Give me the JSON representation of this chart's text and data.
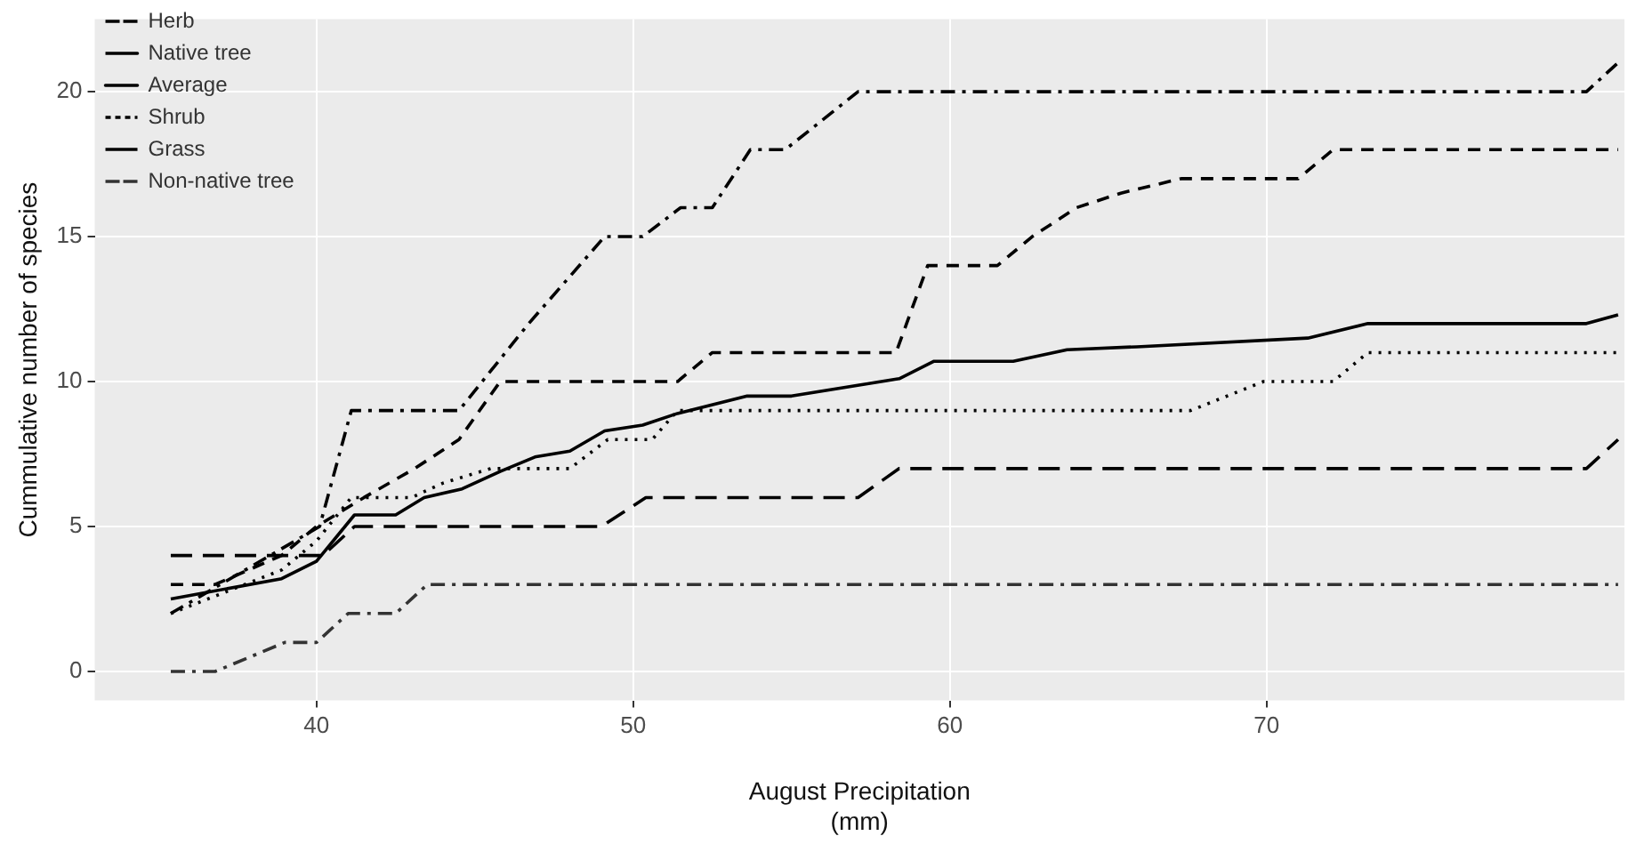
{
  "chart_data": {
    "type": "line",
    "xlabel": "August Precipitation\n(mm)",
    "ylabel": "Cummulative number of species",
    "xlim": [
      33,
      81.3
    ],
    "xticks": [
      40,
      50,
      60,
      70
    ],
    "ylim": [
      -1,
      22.5
    ],
    "yticks": [
      0,
      5,
      10,
      15,
      20
    ],
    "grid": true,
    "legend": "top left",
    "marker": "none",
    "series": [
      {
        "name": "Herb",
        "color": "#000000",
        "line_style": "dashdot",
        "x": [
          35.4,
          40.1,
          41.1,
          44.5,
          46.7,
          49.1,
          50.3,
          51.5,
          52.5,
          53.7,
          54.8,
          57.1,
          80.1,
          81.1
        ],
        "values": [
          2,
          5,
          9,
          9,
          12,
          15,
          15,
          16,
          16,
          18,
          18,
          20,
          20,
          21
        ]
      },
      {
        "name": "Native tree",
        "color": "#000000",
        "line_style": "dashed",
        "x": [
          35.4,
          36.8,
          38.9,
          40,
          41.5,
          43.1,
          44.5,
          45.8,
          51.4,
          52.5,
          58.3,
          59.3,
          61.5,
          62.6,
          64,
          65.4,
          67.3,
          71,
          72.1,
          81.1
        ],
        "values": [
          3,
          3,
          4,
          5,
          6,
          7,
          8,
          10,
          10,
          11,
          11,
          14,
          14,
          15,
          16,
          16.5,
          17,
          17,
          18,
          18
        ]
      },
      {
        "name": "Average",
        "color": "#000000",
        "line_style": "solid",
        "x": [
          35.4,
          38.9,
          40,
          41.2,
          42.5,
          43.4,
          44.6,
          45.8,
          46.9,
          48,
          49.1,
          50.3,
          51.4,
          53.6,
          55,
          58.4,
          59.5,
          62,
          63.7,
          65.9,
          71.3,
          73.2,
          80.1,
          81.1
        ],
        "values": [
          2.5,
          3.2,
          3.8,
          5.4,
          5.4,
          6,
          6.3,
          6.9,
          7.4,
          7.6,
          8.3,
          8.5,
          8.9,
          9.5,
          9.5,
          10.1,
          10.7,
          10.7,
          11.1,
          11.2,
          11.5,
          12,
          12,
          12.3
        ]
      },
      {
        "name": "Shrub",
        "color": "#000000",
        "line_style": "dotted",
        "x": [
          35.4,
          38.9,
          40,
          41.1,
          43,
          44,
          45.5,
          48,
          49.2,
          50.6,
          51.4,
          67.6,
          69.9,
          72.1,
          73.2,
          81.1
        ],
        "values": [
          2,
          3.5,
          4.5,
          6,
          6,
          6.5,
          7,
          7,
          8,
          8,
          9,
          9,
          10,
          10,
          11,
          11
        ]
      },
      {
        "name": "Grass",
        "color": "#000000",
        "line_style": "longdash",
        "x": [
          35.4,
          40.2,
          41.2,
          49,
          50.4,
          57.1,
          58.4,
          80.1,
          81.1
        ],
        "values": [
          4,
          4,
          5,
          5,
          6,
          6,
          7,
          7,
          8
        ]
      },
      {
        "name": "Non-native tree",
        "color": "#333333",
        "line_style": "dashdot",
        "x": [
          35.4,
          36.8,
          39,
          40,
          41,
          42.5,
          43.5,
          81.1
        ],
        "values": [
          0,
          0,
          1,
          1,
          2,
          2,
          3,
          3
        ]
      }
    ]
  }
}
